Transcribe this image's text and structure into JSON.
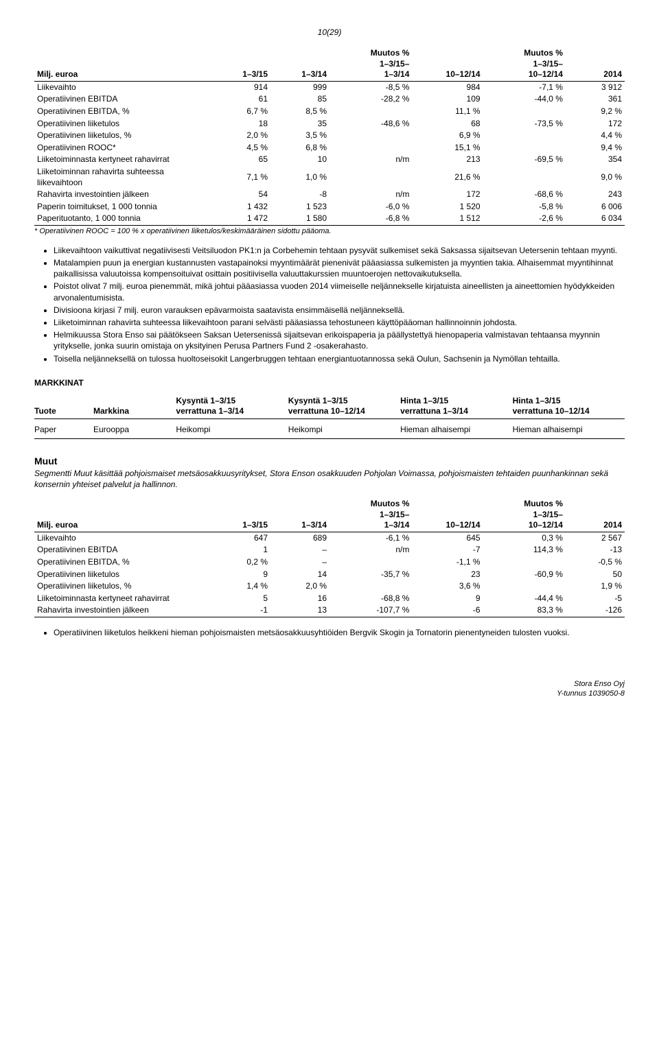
{
  "page_number": "10(29)",
  "table1": {
    "headers": [
      "Milj. euroa",
      "1–3/15",
      "1–3/14",
      "Muutos %\n1–3/15–\n1–3/14",
      "10–12/14",
      "Muutos %\n1–3/15–\n10–12/14",
      "2014"
    ],
    "rows": [
      [
        "Liikevaihto",
        "914",
        "999",
        "-8,5 %",
        "984",
        "-7,1 %",
        "3 912"
      ],
      [
        "Operatiivinen EBITDA",
        "61",
        "85",
        "-28,2 %",
        "109",
        "-44,0 %",
        "361"
      ],
      [
        "Operatiivinen EBITDA, %",
        "6,7 %",
        "8,5 %",
        "",
        "11,1 %",
        "",
        "9,2 %"
      ],
      [
        "Operatiivinen liiketulos",
        "18",
        "35",
        "-48,6 %",
        "68",
        "-73,5 %",
        "172"
      ],
      [
        "Operatiivinen liiketulos, %",
        "2,0 %",
        "3,5 %",
        "",
        "6,9 %",
        "",
        "4,4 %"
      ],
      [
        "Operatiivinen ROOC*",
        "4,5 %",
        "6,8 %",
        "",
        "15,1 %",
        "",
        "9,4 %"
      ],
      [
        "Liiketoiminnasta kertyneet rahavirrat",
        "65",
        "10",
        "n/m",
        "213",
        "-69,5 %",
        "354"
      ],
      [
        "Liiketoiminnan rahavirta suhteessa liikevaihtoon",
        "7,1 %",
        "1,0 %",
        "",
        "21,6 %",
        "",
        "9,0 %"
      ],
      [
        "Rahavirta investointien jälkeen",
        "54",
        "-8",
        "n/m",
        "172",
        "-68,6 %",
        "243"
      ],
      [
        "Paperin toimitukset, 1 000 tonnia",
        "1 432",
        "1 523",
        "-6,0 %",
        "1 520",
        "-5,8 %",
        "6 006"
      ],
      [
        "Paperituotanto, 1 000 tonnia",
        "1 472",
        "1 580",
        "-6,8 %",
        "1 512",
        "-2,6 %",
        "6 034"
      ]
    ],
    "footnote": "* Operatiivinen ROOC = 100 % x operatiivinen liiketulos/keskimääräinen sidottu pääoma."
  },
  "bullets1": [
    "Liikevaihtoon vaikuttivat negatiivisesti Veitsiluodon PK1:n ja Corbehemin tehtaan pysyvät sulkemiset sekä Saksassa sijaitsevan Uetersenin tehtaan myynti.",
    "Matalampien puun ja energian kustannusten vastapainoksi myyntimäärät pienenivät pääasiassa sulkemisten ja myyntien takia. Alhaisemmat myyntihinnat paikallisissa valuutoissa kompensoituivat osittain positiivisella valuuttakurssien muuntoerojen nettovaikutuksella.",
    "Poistot olivat 7 milj. euroa pienemmät, mikä johtui pääasiassa vuoden 2014 viimeiselle neljännekselle kirjatuista aineellisten ja aineettomien hyödykkeiden arvonalentumisista.",
    "Divisioona kirjasi 7 milj. euron varauksen epävarmoista saatavista ensimmäisellä neljänneksellä.",
    "Liiketoiminnan rahavirta suhteessa liikevaihtoon parani selvästi pääasiassa tehostuneen käyttöpääoman hallinnoinnin johdosta.",
    "Helmikuussa Stora Enso sai päätökseen Saksan Uetersenissä sijaitsevan erikoispaperia ja päällystettyä hienopaperia valmistavan tehtaansa myynnin yritykselle, jonka suurin omistaja on yksityinen Perusa Partners Fund 2 -osakerahasto.",
    "Toisella neljänneksellä on tulossa huoltoseisokit Langerbruggen tehtaan energiantuotannossa sekä Oulun, Sachsenin ja Nymöllan tehtailla."
  ],
  "markets_heading": "MARKKINAT",
  "market_table": {
    "headers": [
      "Tuote",
      "Markkina",
      "Kysyntä 1–3/15\nverrattuna 1–3/14",
      "Kysyntä 1–3/15\nverrattuna 10–12/14",
      "Hinta 1–3/15\nverrattuna 1–3/14",
      "Hinta 1–3/15\nverrattuna 10–12/14"
    ],
    "row": [
      "Paper",
      "Eurooppa",
      "Heikompi",
      "Heikompi",
      "Hieman alhaisempi",
      "Hieman alhaisempi"
    ]
  },
  "muut": {
    "heading": "Muut",
    "desc": "Segmentti Muut käsittää pohjoismaiset metsäosakkuusyritykset, Stora Enson osakkuuden Pohjolan Voimassa, pohjoismaisten tehtaiden puunhankinnan sekä konsernin yhteiset palvelut ja hallinnon."
  },
  "table2": {
    "headers": [
      "Milj. euroa",
      "1–3/15",
      "1–3/14",
      "Muutos %\n1–3/15–\n1–3/14",
      "10–12/14",
      "Muutos %\n1–3/15–\n10–12/14",
      "2014"
    ],
    "rows": [
      [
        "Liikevaihto",
        "647",
        "689",
        "-6,1 %",
        "645",
        "0,3 %",
        "2 567"
      ],
      [
        "Operatiivinen EBITDA",
        "1",
        "–",
        "n/m",
        "-7",
        "114,3 %",
        "-13"
      ],
      [
        "Operatiivinen EBITDA, %",
        "0,2 %",
        "–",
        "",
        "-1,1 %",
        "",
        "-0,5 %"
      ],
      [
        "Operatiivinen liiketulos",
        "9",
        "14",
        "-35,7 %",
        "23",
        "-60,9 %",
        "50"
      ],
      [
        "Operatiivinen liiketulos, %",
        "1,4 %",
        "2,0 %",
        "",
        "3,6 %",
        "",
        "1,9 %"
      ],
      [
        "Liiketoiminnasta kertyneet rahavirrat",
        "5",
        "16",
        "-68,8 %",
        "9",
        "-44,4 %",
        "-5"
      ],
      [
        "Rahavirta investointien jälkeen",
        "-1",
        "13",
        "-107,7 %",
        "-6",
        "83,3 %",
        "-126"
      ]
    ]
  },
  "bullets2": [
    "Operatiivinen liiketulos heikkeni hieman pohjoismaisten metsäosakkuusyhtiöiden Bergvik Skogin ja Tornatorin pienentyneiden tulosten vuoksi."
  ],
  "footer": {
    "line1": "Stora Enso Oyj",
    "line2": "Y-tunnus 1039050-8"
  }
}
